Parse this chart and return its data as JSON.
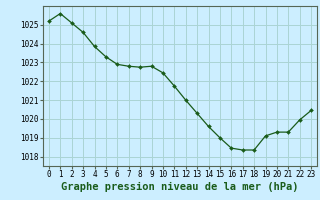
{
  "x": [
    0,
    1,
    2,
    3,
    4,
    5,
    6,
    7,
    8,
    9,
    10,
    11,
    12,
    13,
    14,
    15,
    16,
    17,
    18,
    19,
    20,
    21,
    22,
    23
  ],
  "y": [
    1025.2,
    1025.6,
    1025.1,
    1024.6,
    1023.85,
    1023.3,
    1022.9,
    1022.8,
    1022.75,
    1022.8,
    1022.45,
    1021.75,
    1021.0,
    1020.3,
    1019.6,
    1019.0,
    1018.45,
    1018.35,
    1018.35,
    1019.1,
    1019.3,
    1019.3,
    1019.95,
    1020.45
  ],
  "line_color": "#1a5c1a",
  "marker_color": "#1a5c1a",
  "bg_color": "#cceeff",
  "grid_color": "#aad4d4",
  "xlabel": "Graphe pression niveau de la mer (hPa)",
  "ylim": [
    1017.5,
    1026.0
  ],
  "xlim": [
    -0.5,
    23.5
  ],
  "yticks": [
    1018,
    1019,
    1020,
    1021,
    1022,
    1023,
    1024,
    1025
  ],
  "xticks": [
    0,
    1,
    2,
    3,
    4,
    5,
    6,
    7,
    8,
    9,
    10,
    11,
    12,
    13,
    14,
    15,
    16,
    17,
    18,
    19,
    20,
    21,
    22,
    23
  ],
  "xtick_labels": [
    "0",
    "1",
    "2",
    "3",
    "4",
    "5",
    "6",
    "7",
    "8",
    "9",
    "10",
    "11",
    "12",
    "13",
    "14",
    "15",
    "16",
    "17",
    "18",
    "19",
    "20",
    "21",
    "22",
    "23"
  ],
  "tick_fontsize": 5.5,
  "xlabel_fontsize": 7.5
}
